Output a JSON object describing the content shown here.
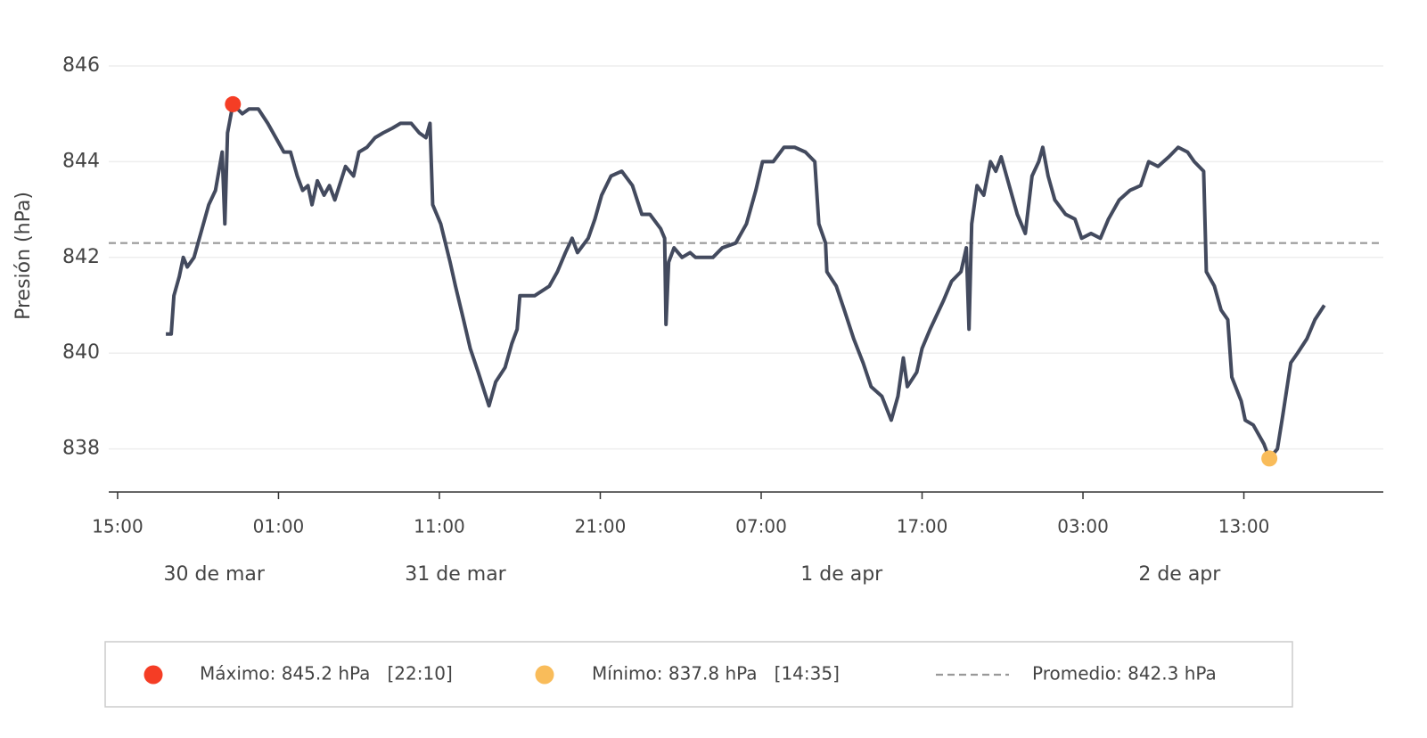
{
  "chart_data": {
    "type": "line",
    "y_label": "Presión (hPa)",
    "color": "#434a5e",
    "x": [
      "03-30 18:00",
      "03-30 18:20",
      "03-30 18:30",
      "03-30 18:50",
      "03-30 19:05",
      "03-30 19:20",
      "03-30 19:45",
      "03-30 20:15",
      "03-30 20:40",
      "03-30 21:05",
      "03-30 21:30",
      "03-30 21:40",
      "03-30 21:50",
      "03-30 22:10",
      "03-30 22:45",
      "03-30 23:10",
      "03-30 23:45",
      "03-31 00:20",
      "03-31 00:50",
      "03-31 01:20",
      "03-31 01:45",
      "03-31 02:10",
      "03-31 02:30",
      "03-31 02:50",
      "03-31 03:05",
      "03-31 03:25",
      "03-31 03:50",
      "03-31 04:10",
      "03-31 04:30",
      "03-31 05:10",
      "03-31 05:40",
      "03-31 06:00",
      "03-31 06:30",
      "03-31 07:00",
      "03-31 07:30",
      "03-31 08:05",
      "03-31 08:35",
      "03-31 09:15",
      "03-31 09:45",
      "03-31 10:10",
      "03-31 10:25",
      "03-31 10:35",
      "03-31 11:05",
      "03-31 11:40",
      "03-31 12:00",
      "03-31 12:30",
      "03-31 12:55",
      "03-31 13:25",
      "03-31 14:05",
      "03-31 14:30",
      "03-31 15:05",
      "03-31 15:30",
      "03-31 15:50",
      "03-31 16:00",
      "03-31 16:55",
      "03-31 17:50",
      "03-31 18:20",
      "03-31 18:50",
      "03-31 19:15",
      "03-31 19:35",
      "03-31 20:15",
      "03-31 20:40",
      "03-31 21:05",
      "03-31 21:40",
      "03-31 22:20",
      "03-31 23:00",
      "03-31 23:35",
      "04-01 00:05",
      "04-01 00:45",
      "04-01 01:00",
      "04-01 01:05",
      "04-01 01:15",
      "04-01 01:35",
      "04-01 02:05",
      "04-01 02:35",
      "04-01 02:55",
      "04-01 04:00",
      "04-01 04:35",
      "04-01 05:25",
      "04-01 06:05",
      "04-01 06:40",
      "04-01 07:05",
      "04-01 07:45",
      "04-01 08:25",
      "04-01 09:05",
      "04-01 09:45",
      "04-01 10:20",
      "04-01 10:35",
      "04-01 11:00",
      "04-01 11:05",
      "04-01 11:40",
      "04-01 12:10",
      "04-01 12:45",
      "04-01 13:20",
      "04-01 13:50",
      "04-01 14:30",
      "04-01 15:05",
      "04-01 15:30",
      "04-01 15:50",
      "04-01 16:05",
      "04-01 16:40",
      "04-01 17:00",
      "04-01 17:30",
      "04-01 18:20",
      "04-01 18:50",
      "04-01 19:25",
      "04-01 19:45",
      "04-01 19:55",
      "04-01 20:05",
      "04-01 20:25",
      "04-01 20:50",
      "04-01 21:15",
      "04-01 21:35",
      "04-01 21:55",
      "04-01 22:30",
      "04-01 22:55",
      "04-01 23:25",
      "04-01 23:50",
      "04-02 00:15",
      "04-02 00:30",
      "04-02 00:50",
      "04-02 01:15",
      "04-02 01:55",
      "04-02 02:30",
      "04-02 02:55",
      "04-02 03:30",
      "04-02 04:05",
      "04-02 04:35",
      "04-02 05:15",
      "04-02 05:55",
      "04-02 06:35",
      "04-02 07:05",
      "04-02 07:40",
      "04-02 08:20",
      "04-02 08:55",
      "04-02 09:30",
      "04-02 09:55",
      "04-02 10:30",
      "04-02 10:40",
      "04-02 11:10",
      "04-02 11:35",
      "04-02 12:00",
      "04-02 12:15",
      "04-02 12:50",
      "04-02 13:05",
      "04-02 13:35",
      "04-02 14:15",
      "04-02 14:35",
      "04-02 15:05",
      "04-02 15:25",
      "04-02 15:55",
      "04-02 16:20",
      "04-02 16:55",
      "04-02 17:25",
      "04-02 18:00"
    ],
    "values": [
      840.4,
      840.4,
      841.2,
      841.6,
      842.0,
      841.8,
      842.0,
      842.6,
      843.1,
      843.4,
      844.2,
      842.7,
      844.6,
      845.2,
      845.0,
      845.1,
      845.1,
      844.8,
      844.5,
      844.2,
      844.2,
      843.7,
      843.4,
      843.5,
      843.1,
      843.6,
      843.3,
      843.5,
      843.2,
      843.9,
      843.7,
      844.2,
      844.3,
      844.5,
      844.6,
      844.7,
      844.8,
      844.8,
      844.6,
      844.5,
      844.8,
      843.1,
      842.7,
      841.9,
      841.4,
      840.7,
      840.1,
      839.6,
      838.9,
      839.4,
      839.7,
      840.2,
      840.5,
      841.2,
      841.2,
      841.4,
      841.7,
      842.1,
      842.4,
      842.1,
      842.4,
      842.8,
      843.3,
      843.7,
      843.8,
      843.5,
      842.9,
      842.9,
      842.6,
      842.4,
      840.6,
      841.9,
      842.2,
      842.0,
      842.1,
      842.0,
      842.0,
      842.2,
      842.3,
      842.7,
      843.4,
      844.0,
      844.0,
      844.3,
      844.3,
      844.2,
      844.0,
      842.7,
      842.3,
      841.7,
      841.4,
      840.9,
      840.3,
      839.8,
      839.3,
      839.1,
      838.6,
      839.1,
      839.9,
      839.3,
      839.6,
      840.1,
      840.5,
      841.1,
      841.5,
      841.7,
      842.2,
      840.5,
      842.7,
      843.5,
      843.3,
      844.0,
      843.8,
      844.1,
      843.4,
      842.9,
      842.5,
      843.7,
      844.0,
      844.3,
      843.7,
      843.2,
      842.9,
      842.8,
      842.4,
      842.5,
      842.4,
      842.8,
      843.2,
      843.4,
      843.5,
      844.0,
      843.9,
      844.1,
      844.3,
      844.2,
      844.0,
      843.8,
      841.7,
      841.4,
      840.9,
      840.7,
      839.5,
      839.0,
      838.6,
      838.5,
      838.1,
      837.8,
      838.0,
      838.7,
      839.8,
      840.0,
      840.3,
      840.7,
      841.0
    ],
    "xlim": [
      "03-30 14:27",
      "04-02 21:40"
    ],
    "xticks": [
      {
        "value": "03-30 15:00",
        "label": "15:00"
      },
      {
        "value": "03-31 01:00",
        "label": "01:00"
      },
      {
        "value": "03-31 11:00",
        "label": "11:00"
      },
      {
        "value": "03-31 21:00",
        "label": "21:00"
      },
      {
        "value": "04-01 07:00",
        "label": "07:00"
      },
      {
        "value": "04-01 17:00",
        "label": "17:00"
      },
      {
        "value": "04-02 03:00",
        "label": "03:00"
      },
      {
        "value": "04-02 13:00",
        "label": "13:00"
      }
    ],
    "day_labels": [
      {
        "value": "03-30",
        "label": "30 de mar"
      },
      {
        "value": "03-31",
        "label": "31 de mar"
      },
      {
        "value": "04-01",
        "label": "1 de apr"
      },
      {
        "value": "04-02",
        "label": "2 de apr"
      }
    ],
    "ylim": [
      837.1,
      846.9
    ],
    "yticks": [
      838,
      840,
      842,
      844,
      846
    ],
    "grid": true,
    "markers": [
      {
        "label": "Máximo: 845.2 hPa   [22:10]",
        "x": "03-30 22:10",
        "value": 845.2,
        "color": "#f53d25"
      },
      {
        "label": "Mínimo: 837.8 hPa   [14:35]",
        "x": "04-02 14:35",
        "value": 837.8,
        "color": "#f9bc5a"
      }
    ],
    "average": {
      "label": "Promedio: 842.3 hPa",
      "value": 842.3,
      "color": "#999999"
    }
  }
}
